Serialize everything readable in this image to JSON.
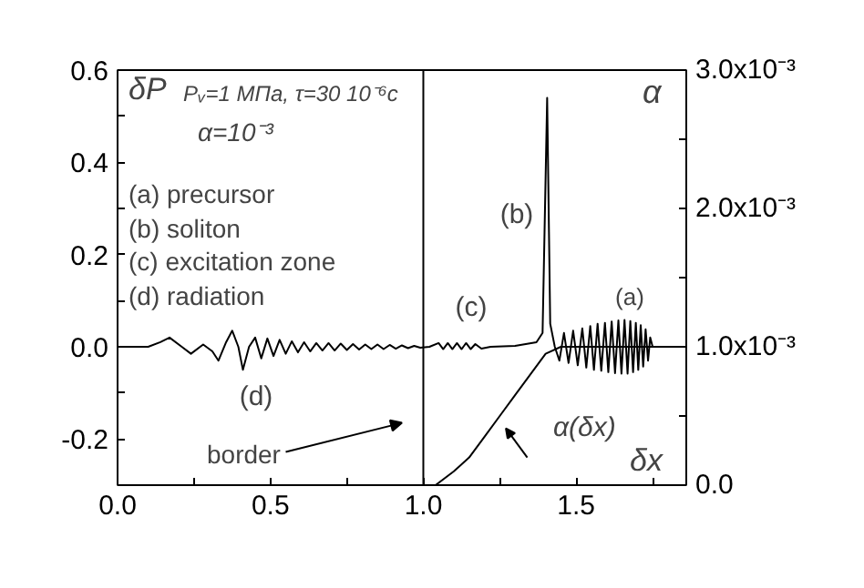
{
  "chart_data": {
    "type": "line",
    "xlabel": "δx",
    "ylabel": "δP",
    "y2label": "α",
    "xlim": [
      0,
      1.86
    ],
    "ylim": [
      -0.3,
      0.6
    ],
    "y2lim": [
      0,
      0.003
    ],
    "xticks": [
      {
        "value": 0,
        "label": "0.0"
      },
      {
        "value": 0.25,
        "label": null
      },
      {
        "value": 0.5,
        "label": "0.5"
      },
      {
        "value": 0.75,
        "label": null
      },
      {
        "value": 1.0,
        "label": "1.0"
      },
      {
        "value": 1.25,
        "label": null
      },
      {
        "value": 1.5,
        "label": "1.5"
      },
      {
        "value": 1.75,
        "label": null
      }
    ],
    "yticks": [
      {
        "value": -0.3,
        "label": null
      },
      {
        "value": -0.2,
        "label": "-0.2"
      },
      {
        "value": -0.1,
        "label": null
      },
      {
        "value": 0,
        "label": "0.0"
      },
      {
        "value": 0.1,
        "label": null
      },
      {
        "value": 0.2,
        "label": "0.2"
      },
      {
        "value": 0.3,
        "label": null
      },
      {
        "value": 0.4,
        "label": "0.4"
      },
      {
        "value": 0.5,
        "label": null
      },
      {
        "value": 0.6,
        "label": "0.6"
      }
    ],
    "y2ticks": [
      {
        "value": 0,
        "label": "0.0"
      },
      {
        "value": 0.0005,
        "label": null
      },
      {
        "value": 0.001,
        "label": "1.0x10⁻³"
      },
      {
        "value": 0.0015,
        "label": null
      },
      {
        "value": 0.002,
        "label": "2.0x10⁻³"
      },
      {
        "value": 0.0025,
        "label": null
      },
      {
        "value": 0.003,
        "label": "3.0x10⁻³"
      }
    ],
    "grid": false,
    "line_style": "solid",
    "series": [
      {
        "color": "#000000",
        "x": [
          0,
          0.1,
          0.14,
          0.17,
          0.21,
          0.24,
          0.28,
          0.31,
          0.33,
          0.355,
          0.375,
          0.395,
          0.41,
          0.43,
          0.45,
          0.47,
          0.49,
          0.51,
          0.53,
          0.55,
          0.57,
          0.59,
          0.61,
          0.63,
          0.65,
          0.67,
          0.69,
          0.71,
          0.73,
          0.75,
          0.77,
          0.79,
          0.81,
          0.83,
          0.85,
          0.87,
          0.89,
          0.91,
          0.93,
          0.95,
          0.97,
          0.99,
          1.02,
          1.05,
          1.065,
          1.08,
          1.095,
          1.11,
          1.125,
          1.14,
          1.155,
          1.17,
          1.19,
          1.22,
          1.3,
          1.37,
          1.39,
          1.405,
          1.415,
          1.43,
          1.445,
          1.46,
          1.475,
          1.49,
          1.505,
          1.52,
          1.533,
          1.546,
          1.558,
          1.57,
          1.582,
          1.594,
          1.605,
          1.616,
          1.627,
          1.638,
          1.648,
          1.658,
          1.668,
          1.677,
          1.686,
          1.695,
          1.703,
          1.711,
          1.719,
          1.727,
          1.735,
          1.742,
          1.75,
          1.86
        ],
        "values": [
          0,
          0,
          0.01,
          0.02,
          0.0,
          -0.015,
          0.005,
          -0.01,
          -0.03,
          0.01,
          0.035,
          0.0,
          -0.05,
          0.0,
          0.02,
          -0.025,
          0.018,
          -0.02,
          0.015,
          -0.015,
          0.012,
          -0.012,
          0.01,
          -0.01,
          0.008,
          -0.008,
          0.008,
          -0.008,
          0.007,
          -0.007,
          0.006,
          -0.006,
          0.005,
          -0.005,
          0.005,
          -0.005,
          0.004,
          -0.004,
          0.003,
          -0.003,
          0.002,
          -0.002,
          0.0,
          0.008,
          -0.005,
          0.008,
          -0.005,
          0.008,
          -0.005,
          0.008,
          -0.005,
          0.006,
          -0.004,
          0.0,
          0.002,
          0.01,
          0.03,
          0.54,
          0.05,
          0.0,
          -0.03,
          0.03,
          -0.035,
          0.035,
          -0.04,
          0.04,
          -0.045,
          0.045,
          -0.05,
          0.05,
          -0.052,
          0.052,
          -0.055,
          0.055,
          -0.057,
          0.057,
          -0.058,
          0.058,
          -0.058,
          0.056,
          -0.055,
          0.052,
          -0.05,
          0.047,
          -0.043,
          0.038,
          -0.03,
          0.02,
          0.0,
          0.0
        ]
      },
      {
        "axis": "y2",
        "color": "#000000",
        "x": [
          1.0,
          1.04,
          1.1,
          1.15,
          1.2,
          1.25,
          1.3,
          1.35,
          1.4,
          1.45,
          1.86
        ],
        "values": [
          0,
          0,
          0.0001,
          0.0002,
          0.00035,
          0.0005,
          0.00065,
          0.0008,
          0.00095,
          0.001,
          0.001
        ]
      }
    ],
    "ref_lines": [
      {
        "axis": "x",
        "value": 1.0,
        "color": "#000000"
      }
    ],
    "annotations": [
      "Pᵥ=1 МПа, τ=30 10⁻⁶с",
      "α=10⁻³",
      "(a) precursor",
      "(b) soliton",
      "(c) excitation zone",
      "(d) radiation",
      "border",
      "(a)",
      "(b)",
      "(c)",
      "(d)",
      "α(δx)"
    ]
  }
}
